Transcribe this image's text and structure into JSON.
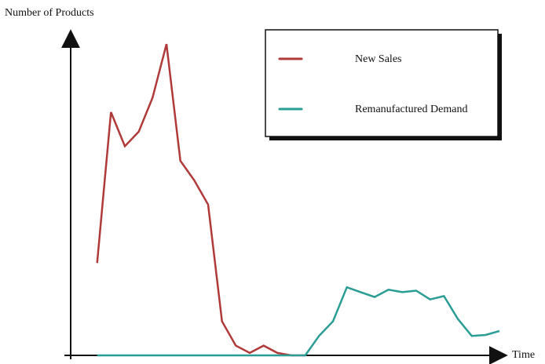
{
  "chart_data": {
    "type": "line",
    "title": "",
    "xlabel": "Time",
    "ylabel": "Number of Products",
    "grid": false,
    "legend_position": "top-right",
    "xlim": [
      0,
      30
    ],
    "ylim": [
      0,
      65
    ],
    "series": [
      {
        "name": "New Sales",
        "color": "#b03a3a",
        "x": [
          1,
          2,
          3,
          4,
          5,
          6,
          7,
          8,
          9,
          10,
          11,
          12,
          13,
          14,
          15,
          16
        ],
        "y": [
          19,
          50,
          43,
          46,
          53,
          64,
          40,
          36,
          31,
          7,
          2,
          0.5,
          2,
          0.5,
          0,
          0
        ]
      },
      {
        "name": "Remanufactured Demand",
        "color": "#2a9d94",
        "x": [
          1,
          16,
          17,
          18,
          19,
          20,
          21,
          22,
          23,
          24,
          25,
          26,
          27,
          28,
          29,
          30
        ],
        "y": [
          0,
          0,
          4,
          7,
          14,
          13,
          12,
          13.5,
          13,
          13.3,
          11.5,
          12.2,
          7.5,
          4,
          4.2,
          5
        ]
      }
    ]
  }
}
